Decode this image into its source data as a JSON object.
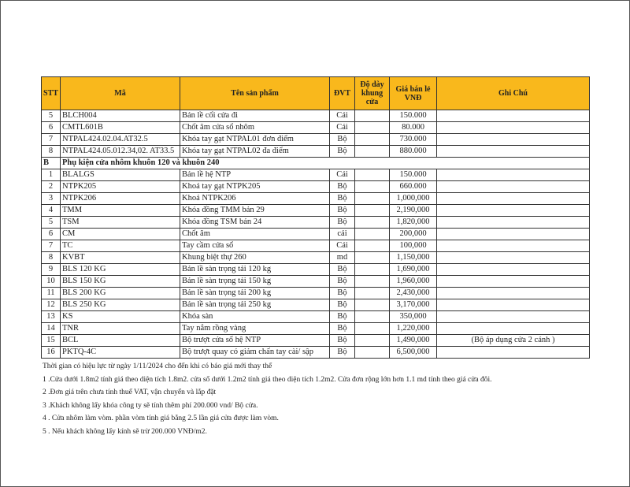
{
  "header": {
    "stt": "STT",
    "ma": "Mã",
    "ten": "Tên sản phẩm",
    "dvt": "ĐVT",
    "do_day": "Độ dày khung cửa",
    "gia": "Giá bán lẻ VNĐ",
    "ghi_chu": "Ghi Chú"
  },
  "rows_a": [
    {
      "stt": "5",
      "ma": "BLCH004",
      "ten": "Bản lề cối cửa đi",
      "dvt": "Cái",
      "gia": "150.000",
      "note": ""
    },
    {
      "stt": "6",
      "ma": "CMTL601B",
      "ten": "Chốt âm cửa sổ nhôm",
      "dvt": "Cái",
      "gia": "80.000",
      "note": ""
    },
    {
      "stt": "7",
      "ma": "NTPAL424.02.04.AT32.5",
      "ten": "Khóa tay gạt NTPAL01 đơn điểm",
      "dvt": "Bộ",
      "gia": "730.000",
      "note": ""
    },
    {
      "stt": "8",
      "ma": "NTPAL424.05.012.34,02. AT33.5",
      "ten": "Khóa tay gạt NTPAL02 đa điểm",
      "dvt": "Bộ",
      "gia": "880.000",
      "note": ""
    }
  ],
  "section_b": {
    "code": "B",
    "title": "Phụ kiện cửa nhôm khuôn 120 và khuôn 240"
  },
  "rows_b": [
    {
      "stt": "1",
      "ma": "BLALGS",
      "ten": "Bản lề hệ NTP",
      "dvt": "Cái",
      "gia": "150.000",
      "note": ""
    },
    {
      "stt": "2",
      "ma": "NTPK205",
      "ten": "Khoá tay gạt NTPK205",
      "dvt": "Bộ",
      "gia": "660.000",
      "note": ""
    },
    {
      "stt": "3",
      "ma": "NTPK206",
      "ten": "Khoá NTPK206",
      "dvt": "Bộ",
      "gia": "1,000,000",
      "note": ""
    },
    {
      "stt": "4",
      "ma": "TMM",
      "ten": "Khóa đồng TMM bản 29",
      "dvt": "Bộ",
      "gia": "2,190,000",
      "note": ""
    },
    {
      "stt": "5",
      "ma": "TSM",
      "ten": "Khóa đồng TSM bản 24",
      "dvt": "Bộ",
      "gia": "1,820,000",
      "note": ""
    },
    {
      "stt": "6",
      "ma": "CM",
      "ten": "Chốt âm",
      "dvt": "cái",
      "gia": "200,000",
      "note": ""
    },
    {
      "stt": "7",
      "ma": "TC",
      "ten": "Tay cầm cửa sổ",
      "dvt": "Cái",
      "gia": "100,000",
      "note": ""
    },
    {
      "stt": "8",
      "ma": "KVBT",
      "ten": "Khung biệt thự 260",
      "dvt": "md",
      "gia": "1,150,000",
      "note": ""
    },
    {
      "stt": "9",
      "ma": "BLS 120 KG",
      "ten": "Bản lề sàn trọng tải 120 kg",
      "dvt": "Bộ",
      "gia": "1,690,000",
      "note": ""
    },
    {
      "stt": "10",
      "ma": "BLS 150 KG",
      "ten": "Bản lề sàn trọng tải 150 kg",
      "dvt": "Bộ",
      "gia": "1,960,000",
      "note": ""
    },
    {
      "stt": "11",
      "ma": "BLS 200 KG",
      "ten": "Bản lề sàn trọng tải 200 kg",
      "dvt": "Bộ",
      "gia": "2,430,000",
      "note": ""
    },
    {
      "stt": "12",
      "ma": "BLS 250 KG",
      "ten": "Bản lề sàn trọng tải 250 kg",
      "dvt": "Bộ",
      "gia": "3,170,000",
      "note": ""
    },
    {
      "stt": "13",
      "ma": "KS",
      "ten": "Khóa sàn",
      "dvt": "Bộ",
      "gia": "350,000",
      "note": ""
    },
    {
      "stt": "14",
      "ma": "TNR",
      "ten": "Tay nắm rồng vàng",
      "dvt": "Bộ",
      "gia": "1,220,000",
      "note": ""
    },
    {
      "stt": "15",
      "ma": "BCL",
      "ten": "Bộ trượt cửa sổ hệ NTP",
      "dvt": "Bộ",
      "gia": "1,490,000",
      "note": "(Bộ áp dụng cửa 2 cánh )"
    },
    {
      "stt": "16",
      "ma": "PKTQ-4C",
      "ten": "Bộ trượt quay có giảm chấn tay cài/ sập",
      "dvt": "Bộ",
      "gia": "6,500,000",
      "note": ""
    }
  ],
  "notes": [
    "Thời gian có hiệu lực từ ngày 1/11/2024 cho đến khi có báo giá mới thay thế",
    "1 .Cửa dưới 1.8m2 tính giá theo diện tích 1.8m2. cửa sổ dưới 1.2m2 tính giá theo diện tích 1.2m2. Cửa đơn rộng lớn hơn 1.1 md tính theo giá cửa đôi.",
    "2 .Đơn giá trên chưa tính thuế VAT, vận chuyển và lắp đặt",
    "3 .Khách không lấy khóa công ty sẽ tính thêm phí 200.000 vnd/ Bộ cửa.",
    "4 . Cửa nhôm làm vòm. phần vòm tính giá bằng 2.5 lần giá cửa được làm vòm.",
    "5 . Nếu khách không lấy kính sẽ trừ 200.000 VNĐ/m2."
  ],
  "colors": {
    "header_bg": "#f9b81c"
  }
}
